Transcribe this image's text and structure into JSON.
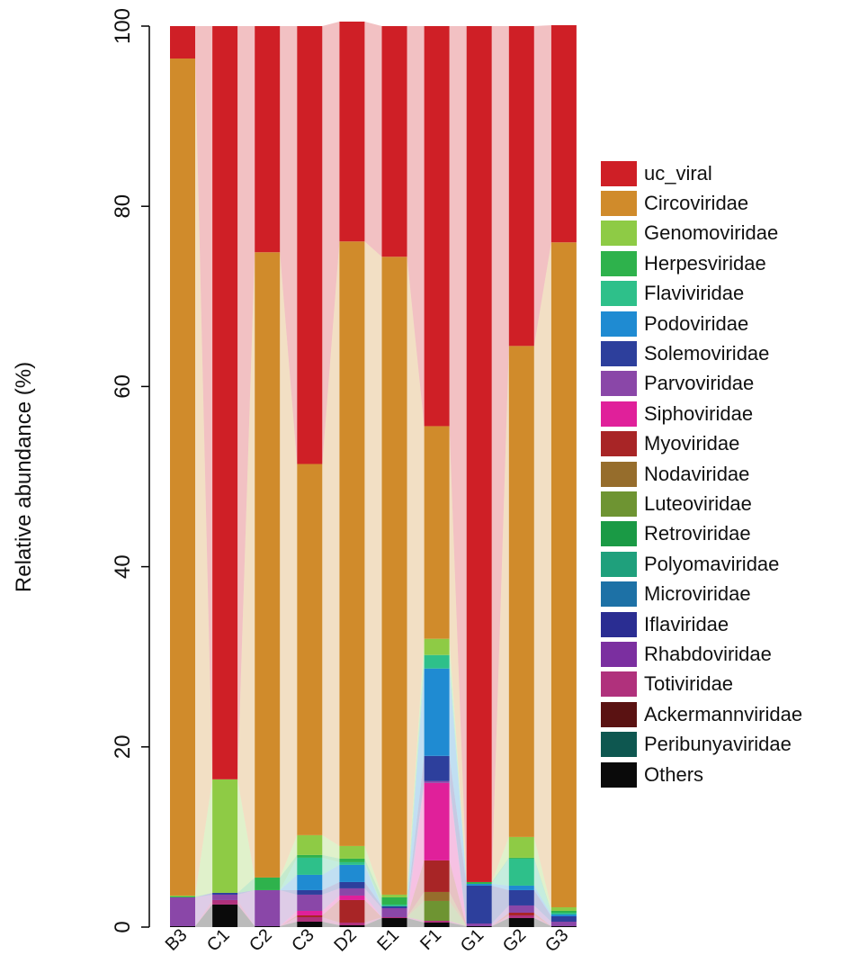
{
  "chart_data": {
    "type": "bar",
    "stacked": true,
    "title": "",
    "xlabel": "",
    "ylabel": "Relative abundance (%)",
    "ylim": [
      0,
      100
    ],
    "yticks": [
      0,
      20,
      40,
      60,
      80,
      100
    ],
    "categories": [
      "B3",
      "C1",
      "C2",
      "C3",
      "D2",
      "E1",
      "F1",
      "G1",
      "G2",
      "G3"
    ],
    "legend_position": "right",
    "series": [
      {
        "name": "Others",
        "color": "#0a0a0a",
        "values": [
          0.1,
          2.5,
          0.1,
          0.6,
          0.2,
          1.0,
          0.5,
          0.1,
          1.0,
          0.1
        ]
      },
      {
        "name": "Peribunyaviridae",
        "color": "#0e5750",
        "values": [
          0,
          0,
          0,
          0,
          0,
          0,
          0,
          0,
          0,
          0
        ]
      },
      {
        "name": "Ackermannviridae",
        "color": "#5a1212",
        "values": [
          0,
          0,
          0,
          0,
          0,
          0,
          0,
          0,
          0,
          0
        ]
      },
      {
        "name": "Totiviridae",
        "color": "#b0317c",
        "values": [
          0,
          0.5,
          0,
          0.5,
          0.3,
          0.1,
          0.2,
          0,
          0.3,
          0
        ]
      },
      {
        "name": "Rhabdoviridae",
        "color": "#7b2fa0",
        "values": [
          0,
          0,
          0,
          0,
          0,
          0,
          0,
          0,
          0,
          0
        ]
      },
      {
        "name": "Iflaviridae",
        "color": "#2a2d92",
        "values": [
          0,
          0,
          0,
          0,
          0,
          0,
          0,
          0,
          0,
          0
        ]
      },
      {
        "name": "Microviridae",
        "color": "#1d71a6",
        "values": [
          0,
          0,
          0,
          0,
          0,
          0,
          0,
          0,
          0,
          0
        ]
      },
      {
        "name": "Polyomaviridae",
        "color": "#1fa07c",
        "values": [
          0,
          0,
          0,
          0,
          0,
          0,
          0,
          0,
          0,
          0
        ]
      },
      {
        "name": "Retroviridae",
        "color": "#1a9a45",
        "values": [
          0,
          0,
          0,
          0,
          0,
          0,
          0,
          0,
          0,
          0
        ]
      },
      {
        "name": "Luteoviridae",
        "color": "#6e9432",
        "values": [
          0,
          0,
          0,
          0,
          0,
          0,
          2.2,
          0,
          0,
          0
        ]
      },
      {
        "name": "Nodaviridae",
        "color": "#966d2c",
        "values": [
          0,
          0,
          0,
          0,
          0,
          0,
          1.0,
          0,
          0,
          0
        ]
      },
      {
        "name": "Myoviridae",
        "color": "#a82526",
        "values": [
          0,
          0,
          0,
          0.2,
          2.5,
          0,
          3.5,
          0,
          0.3,
          0
        ]
      },
      {
        "name": "Siphoviridae",
        "color": "#e0209a",
        "values": [
          0,
          0,
          0,
          0.5,
          0.5,
          0,
          8.6,
          0,
          0,
          0
        ]
      },
      {
        "name": "Parvoviridae",
        "color": "#8a47a8",
        "values": [
          3.2,
          0.6,
          4.0,
          1.8,
          0.8,
          1.0,
          0.2,
          0.3,
          0.8,
          0.5
        ]
      },
      {
        "name": "Solemoviridae",
        "color": "#2d3f9c",
        "values": [
          0,
          0.2,
          0,
          0.5,
          0.7,
          0.2,
          2.8,
          4.2,
          1.7,
          0.6
        ]
      },
      {
        "name": "Podoviridae",
        "color": "#1f8bd2",
        "values": [
          0,
          0,
          0,
          1.7,
          1.9,
          0,
          9.7,
          0.2,
          0.5,
          0.2
        ]
      },
      {
        "name": "Flaviviridae",
        "color": "#2ec08a",
        "values": [
          0,
          0,
          0,
          1.9,
          0.3,
          0.2,
          1.5,
          0,
          3.0,
          0.2
        ]
      },
      {
        "name": "Herpesviridae",
        "color": "#2eb24c",
        "values": [
          0.1,
          0,
          1.4,
          0.3,
          0.4,
          0.8,
          0,
          0.2,
          0.1,
          0.2
        ]
      },
      {
        "name": "Genomoviridae",
        "color": "#8ecb45",
        "values": [
          0.1,
          12.6,
          0,
          2.2,
          1.4,
          0.3,
          1.8,
          0,
          2.3,
          0.4
        ]
      },
      {
        "name": "Circoviridae",
        "color": "#d08b2b",
        "values": [
          92.9,
          0,
          69.4,
          41.2,
          67.1,
          70.8,
          23.6,
          0,
          54.5,
          73.8
        ]
      },
      {
        "name": "uc_viral",
        "color": "#cf1f26",
        "values": [
          3.6,
          83.6,
          25.1,
          48.6,
          24.4,
          25.6,
          44.4,
          95.0,
          35.5,
          24.1
        ]
      }
    ]
  },
  "legend": [
    {
      "label": "uc_viral",
      "color": "#cf1f26"
    },
    {
      "label": "Circoviridae",
      "color": "#d08b2b"
    },
    {
      "label": "Genomoviridae",
      "color": "#8ecb45"
    },
    {
      "label": "Herpesviridae",
      "color": "#2eb24c"
    },
    {
      "label": "Flaviviridae",
      "color": "#2ec08a"
    },
    {
      "label": "Podoviridae",
      "color": "#1f8bd2"
    },
    {
      "label": "Solemoviridae",
      "color": "#2d3f9c"
    },
    {
      "label": "Parvoviridae",
      "color": "#8a47a8"
    },
    {
      "label": "Siphoviridae",
      "color": "#e0209a"
    },
    {
      "label": "Myoviridae",
      "color": "#a82526"
    },
    {
      "label": "Nodaviridae",
      "color": "#966d2c"
    },
    {
      "label": "Luteoviridae",
      "color": "#6e9432"
    },
    {
      "label": "Retroviridae",
      "color": "#1a9a45"
    },
    {
      "label": "Polyomaviridae",
      "color": "#1fa07c"
    },
    {
      "label": "Microviridae",
      "color": "#1d71a6"
    },
    {
      "label": "Iflaviridae",
      "color": "#2a2d92"
    },
    {
      "label": "Rhabdoviridae",
      "color": "#7b2fa0"
    },
    {
      "label": "Totiviridae",
      "color": "#b0317c"
    },
    {
      "label": "Ackermannviridae",
      "color": "#5a1212"
    },
    {
      "label": "Peribunyaviridae",
      "color": "#0e5750"
    },
    {
      "label": "Others",
      "color": "#0a0a0a"
    }
  ]
}
